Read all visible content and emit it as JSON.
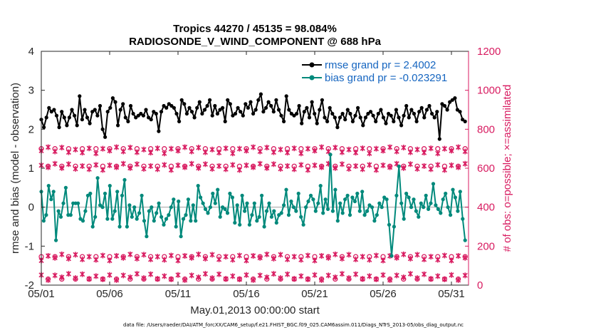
{
  "chart_data": {
    "type": "line",
    "title_line1": "Tropics 44270 / 45135 = 98.084%",
    "title_line2": "RADIOSONDE_V_WIND_COMPONENT @ 688 hPa",
    "xlabel": "May.01,2013 00:00:00 start",
    "ylabel": "rmse and bias (model - observation)",
    "ylabel_right": "# of obs: o=possible; ×=assimilated",
    "xlim": [
      0,
      31.25
    ],
    "ylim": [
      -2,
      4
    ],
    "ylim_right": [
      0,
      1200
    ],
    "xticks": [
      {
        "value": 0,
        "label": "05/01"
      },
      {
        "value": 5,
        "label": "05/06"
      },
      {
        "value": 10,
        "label": "05/11"
      },
      {
        "value": 15,
        "label": "05/16"
      },
      {
        "value": 20,
        "label": "05/21"
      },
      {
        "value": 25,
        "label": "05/26"
      },
      {
        "value": 30,
        "label": "05/31"
      }
    ],
    "yticks": [
      "-2",
      "-1",
      "0",
      "1",
      "2",
      "3",
      "4"
    ],
    "yticks_right": [
      "0",
      "200",
      "400",
      "600",
      "800",
      "1000",
      "1200"
    ],
    "zero_line": 0,
    "footnote": "data file: /Users/raeder/DAI/ATM_forcXX/CAM6_setup/f.e21.FHIST_BGC.f09_025.CAM6assim.011/Diags_NTrS_2013-05/obs_diag_output.nc",
    "series": [
      {
        "name": "rmse",
        "legend": "rmse grand pr = 2.4002",
        "color": "#000000",
        "values": [
          2.25,
          2.05,
          2.3,
          2.55,
          2.45,
          2.5,
          2.35,
          2.05,
          2.45,
          2.3,
          2.1,
          2.3,
          2.5,
          2.35,
          2.1,
          2.85,
          2.25,
          2.5,
          2.3,
          2.15,
          2.45,
          2.5,
          2.35,
          2.6,
          2.0,
          1.8,
          2.45,
          2.55,
          2.8,
          2.7,
          2.1,
          2.5,
          2.65,
          2.3,
          2.2,
          2.6,
          2.4,
          2.3,
          2.35,
          2.4,
          2.35,
          2.5,
          2.3,
          2.25,
          2.45,
          2.4,
          1.95,
          2.45,
          2.6,
          2.55,
          2.65,
          2.6,
          2.55,
          2.4,
          2.2,
          2.75,
          2.65,
          2.4,
          2.55,
          2.45,
          2.3,
          2.55,
          2.7,
          2.4,
          2.5,
          2.6,
          2.75,
          2.35,
          2.6,
          2.4,
          2.5,
          2.55,
          2.2,
          2.75,
          2.65,
          2.35,
          2.4,
          2.55,
          2.45,
          2.35,
          2.65,
          2.55,
          2.7,
          2.4,
          2.5,
          2.75,
          2.9,
          2.45,
          2.55,
          2.7,
          2.6,
          2.45,
          2.75,
          2.5,
          2.35,
          2.2,
          2.85,
          2.5,
          2.4,
          2.35,
          2.4,
          2.6,
          2.15,
          2.45,
          2.55,
          2.3,
          2.7,
          2.4,
          2.15,
          2.5,
          2.75,
          2.3,
          2.2,
          2.55,
          2.4,
          2.3,
          2.05,
          2.3,
          2.4,
          2.25,
          2.5,
          2.4,
          2.2,
          2.35,
          2.55,
          2.3,
          2.1,
          2.3,
          2.4,
          2.45,
          2.35,
          2.2,
          2.4,
          2.5,
          2.3,
          2.15,
          2.4,
          2.35,
          2.2,
          2.5,
          2.3,
          2.1,
          2.35,
          2.6,
          2.3,
          2.5,
          2.4,
          2.2,
          2.45,
          2.55,
          2.3,
          2.5,
          2.6,
          2.4,
          2.3,
          2.45,
          1.75,
          2.65,
          2.6,
          2.5,
          2.7,
          2.75,
          2.8,
          2.5,
          2.45,
          2.25,
          2.2
        ]
      },
      {
        "name": "bias",
        "legend": "bias grand pr = -0.023291",
        "color": "#00897b",
        "values": [
          0.4,
          -0.35,
          -0.2,
          0.55,
          0.2,
          0.4,
          -0.85,
          -0.1,
          -0.25,
          0.1,
          0.5,
          -0.2,
          -0.2,
          0.1,
          0.1,
          0.1,
          -0.3,
          -0.35,
          -0.1,
          0.3,
          0.35,
          -0.5,
          -0.25,
          0.75,
          0.05,
          0.0,
          0.35,
          -0.3,
          0.55,
          -0.3,
          -0.1,
          0.4,
          -0.5,
          0.3,
          0.7,
          -0.5,
          0.05,
          -0.25,
          0.0,
          -0.3,
          -0.15,
          0.3,
          -0.35,
          -0.75,
          -0.1,
          0.0,
          -0.35,
          -0.15,
          0.1,
          -0.25,
          -0.45,
          -0.3,
          -0.2,
          0.0,
          0.2,
          -0.5,
          0.15,
          -0.75,
          -0.3,
          -0.2,
          0.2,
          -0.35,
          0.05,
          -0.35,
          0.55,
          0.25,
          0.1,
          -0.05,
          -0.15,
          0.0,
          0.35,
          0.1,
          0.45,
          -0.25,
          0.0,
          -0.05,
          -0.15,
          0.35,
          0.25,
          -0.4,
          0.05,
          -0.45,
          0.3,
          -0.1,
          0.1,
          -0.45,
          -0.2,
          0.1,
          -0.35,
          -0.25,
          0.3,
          -0.5,
          -0.1,
          0.1,
          -0.25,
          -0.1,
          -0.4,
          -0.2,
          -0.15,
          0.05,
          0.45,
          -0.2,
          0.15,
          0.0,
          -0.1,
          0.35,
          -0.25,
          -0.45,
          0.0,
          0.15,
          0.3,
          0.2,
          -0.1,
          0.1,
          0.55,
          -0.15,
          0.2,
          -0.05,
          1.35,
          -0.1,
          0.45,
          -0.35,
          0.1,
          -0.15,
          0.2,
          0.3,
          -0.2,
          0.25,
          0.15,
          0.35,
          -0.1,
          0.4,
          -0.2,
          -0.1,
          0.05,
          0.0,
          -0.35,
          -0.2,
          0.1,
          0.0,
          0.25,
          0.2,
          -0.45,
          -1.25,
          -0.5,
          0.3,
          1.05,
          0.1,
          -0.3,
          0.35,
          0.25,
          0.0,
          0.2,
          -0.1,
          -0.25,
          0.1,
          0.0,
          0.3,
          -0.05,
          0.1,
          0.6,
          0.05,
          -0.05,
          -0.15,
          0.2,
          0.35,
          0.0,
          -0.2,
          0.45,
          0.25,
          -0.1,
          0.4,
          -0.3,
          -0.85
        ]
      }
    ],
    "obs_counts": {
      "assimilated_levels": [
        690,
        605,
        140,
        40
      ],
      "possible_levels": [
        700,
        620,
        150,
        45
      ],
      "legend_right": "# of obs: o=possible; ×=assimilated"
    }
  }
}
